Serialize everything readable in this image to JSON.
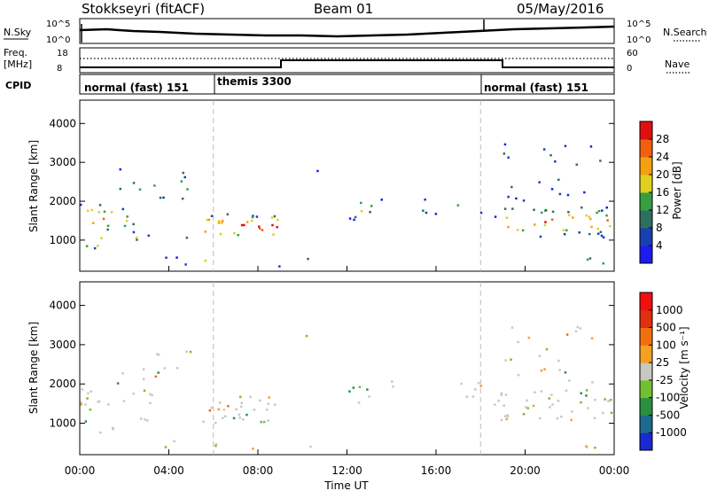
{
  "header": {
    "radar": "Stokkseyri (fitACF)",
    "beam": "Beam 01",
    "date": "05/May/2016"
  },
  "labels": {
    "nsky": "N.Sky",
    "nsearch": "N.Search",
    "freq": "Freq.",
    "mhz": "[MHz]",
    "nave": "Nave",
    "cpid": "CPID",
    "xaxis": "Time UT",
    "power_cb": "Power [dB]",
    "velocity_cb": "Velocity [m s⁻¹]"
  },
  "noise_panel": {
    "left_ticks": [
      "10^5",
      "10^0"
    ],
    "right_ticks": [
      "10^5",
      "10^0"
    ]
  },
  "freq_panel": {
    "left_ticks": [
      "18",
      "8"
    ],
    "right_ticks": [
      "60",
      "0"
    ]
  },
  "cpid": [
    {
      "start_h": 0,
      "end_h": 6,
      "label": "normal (fast) 151"
    },
    {
      "start_h": 6,
      "end_h": 18,
      "label": "themis 3300"
    },
    {
      "start_h": 18,
      "end_h": 24,
      "label": "normal (fast) 151"
    }
  ],
  "chart_data": [
    {
      "type": "heatmap",
      "panel": "power",
      "xlabel": "Time UT",
      "ylabel": "Slant Range [km]",
      "xlim": [
        0,
        24
      ],
      "ylim": [
        200,
        4600
      ],
      "xticks": [
        "00:00",
        "04:00",
        "08:00",
        "12:00",
        "16:00",
        "20:00",
        "00:00"
      ],
      "yticks": [
        1000,
        2000,
        3000,
        4000
      ],
      "colorbar": {
        "label": "Power [dB]",
        "ticks": [
          4,
          8,
          12,
          16,
          20,
          24,
          28
        ],
        "colors": [
          "#1c1cf0",
          "#1a3fb0",
          "#2d7060",
          "#36a040",
          "#e0d020",
          "#f5a010",
          "#f06010",
          "#e01010"
        ]
      }
    },
    {
      "type": "heatmap",
      "panel": "velocity",
      "xlabel": "Time UT",
      "ylabel": "Slant Range [km]",
      "xlim": [
        0,
        24
      ],
      "ylim": [
        200,
        4600
      ],
      "xticks": [
        "00:00",
        "04:00",
        "08:00",
        "12:00",
        "16:00",
        "20:00",
        "00:00"
      ],
      "yticks": [
        1000,
        2000,
        3000,
        4000
      ],
      "colorbar": {
        "label": "Velocity [m s⁻¹]",
        "ticks": [
          1000,
          500,
          100,
          25,
          -25,
          -100,
          -500,
          -1000
        ],
        "colors": [
          "#1a2ad0",
          "#1e6a90",
          "#2a9040",
          "#70c030",
          "#c8c8c0",
          "#f5a020",
          "#f07010",
          "#e03010",
          "#f01010"
        ]
      }
    }
  ]
}
